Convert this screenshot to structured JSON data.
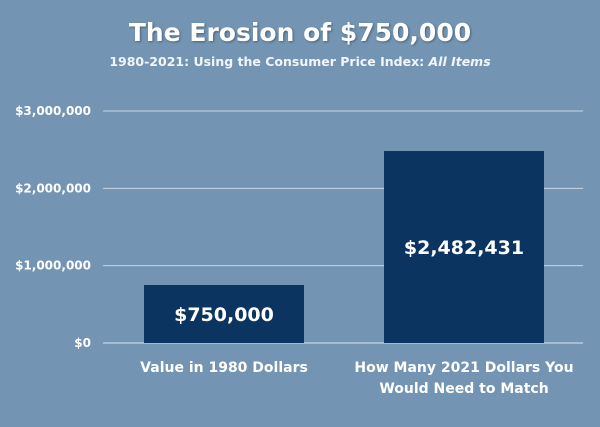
{
  "chart_data": {
    "type": "bar",
    "title": "The Erosion of $750,000",
    "subtitle": "1980-2021: Using the Consumer Price Index: ",
    "subtitle_emphasis": "All Items",
    "categories": [
      [
        "Value in 1980 Dollars"
      ],
      [
        "How Many 2021 Dollars You",
        "Would Need to Match"
      ]
    ],
    "values": [
      750000,
      2482431
    ],
    "data_labels": [
      "$750,000",
      "$2,482,431"
    ],
    "ylim": [
      0,
      3000000
    ],
    "yticks": [
      0,
      1000000,
      2000000,
      3000000
    ],
    "ytick_labels": [
      "$0",
      "$1,000,000",
      "$2,000,000",
      "$3,000,000"
    ],
    "grid": true,
    "colors": {
      "background": "#7395b3",
      "bar": "#0b3461",
      "grid": "#c8d6e4",
      "text": "#ffffff"
    }
  }
}
